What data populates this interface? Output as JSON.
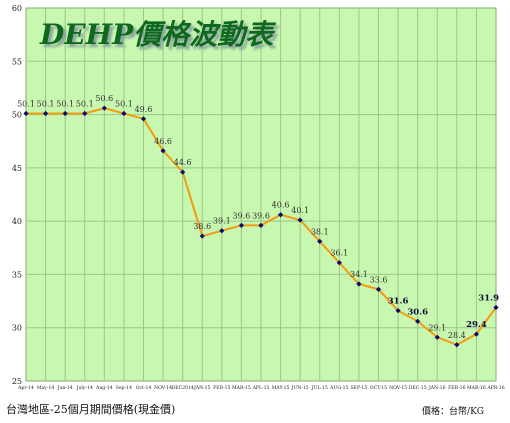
{
  "chart_data": {
    "type": "line",
    "title": "DEHP價格波動表",
    "categories": [
      "Apr-14",
      "May-14",
      "Jun-14",
      "July-14",
      "Aug-14",
      "Sep-14",
      "Oct-14",
      "NOV-14",
      "DEC2014",
      "JAN-15",
      "FEB-15",
      "MAR-15",
      "APL-15",
      "MAY-15",
      "JUN-15",
      "JUL-15",
      "AUG-15",
      "SEP-15",
      "OCT-15",
      "NOV-15",
      "DEC-15",
      "JAN-16",
      "FEB-16",
      "MAR-16",
      "APR-16"
    ],
    "values": [
      50.1,
      50.1,
      50.1,
      50.1,
      50.6,
      50.1,
      49.6,
      46.6,
      44.6,
      38.6,
      39.1,
      39.6,
      39.6,
      40.6,
      40.1,
      38.1,
      36.1,
      34.1,
      33.6,
      31.6,
      30.6,
      29.1,
      28.4,
      29.4,
      31.9
    ],
    "bold_labels": [
      19,
      20,
      23,
      24
    ],
    "yticks": [
      25,
      30,
      35,
      40,
      45,
      50,
      55,
      60
    ],
    "ylim": [
      25,
      60
    ],
    "xlabel": "",
    "ylabel": "",
    "grid": true,
    "colors": {
      "plot_background": "#c8f7b0",
      "grid": "#9dc78a",
      "line": "#f39c12",
      "marker": "#0a0a6e",
      "title": "#0d6b1f",
      "title_shadow": "#8aa0a0"
    }
  },
  "footer": {
    "source": "台灣地區-25個月期間價格(現金價)",
    "unit": "價格：台幣/KG"
  }
}
